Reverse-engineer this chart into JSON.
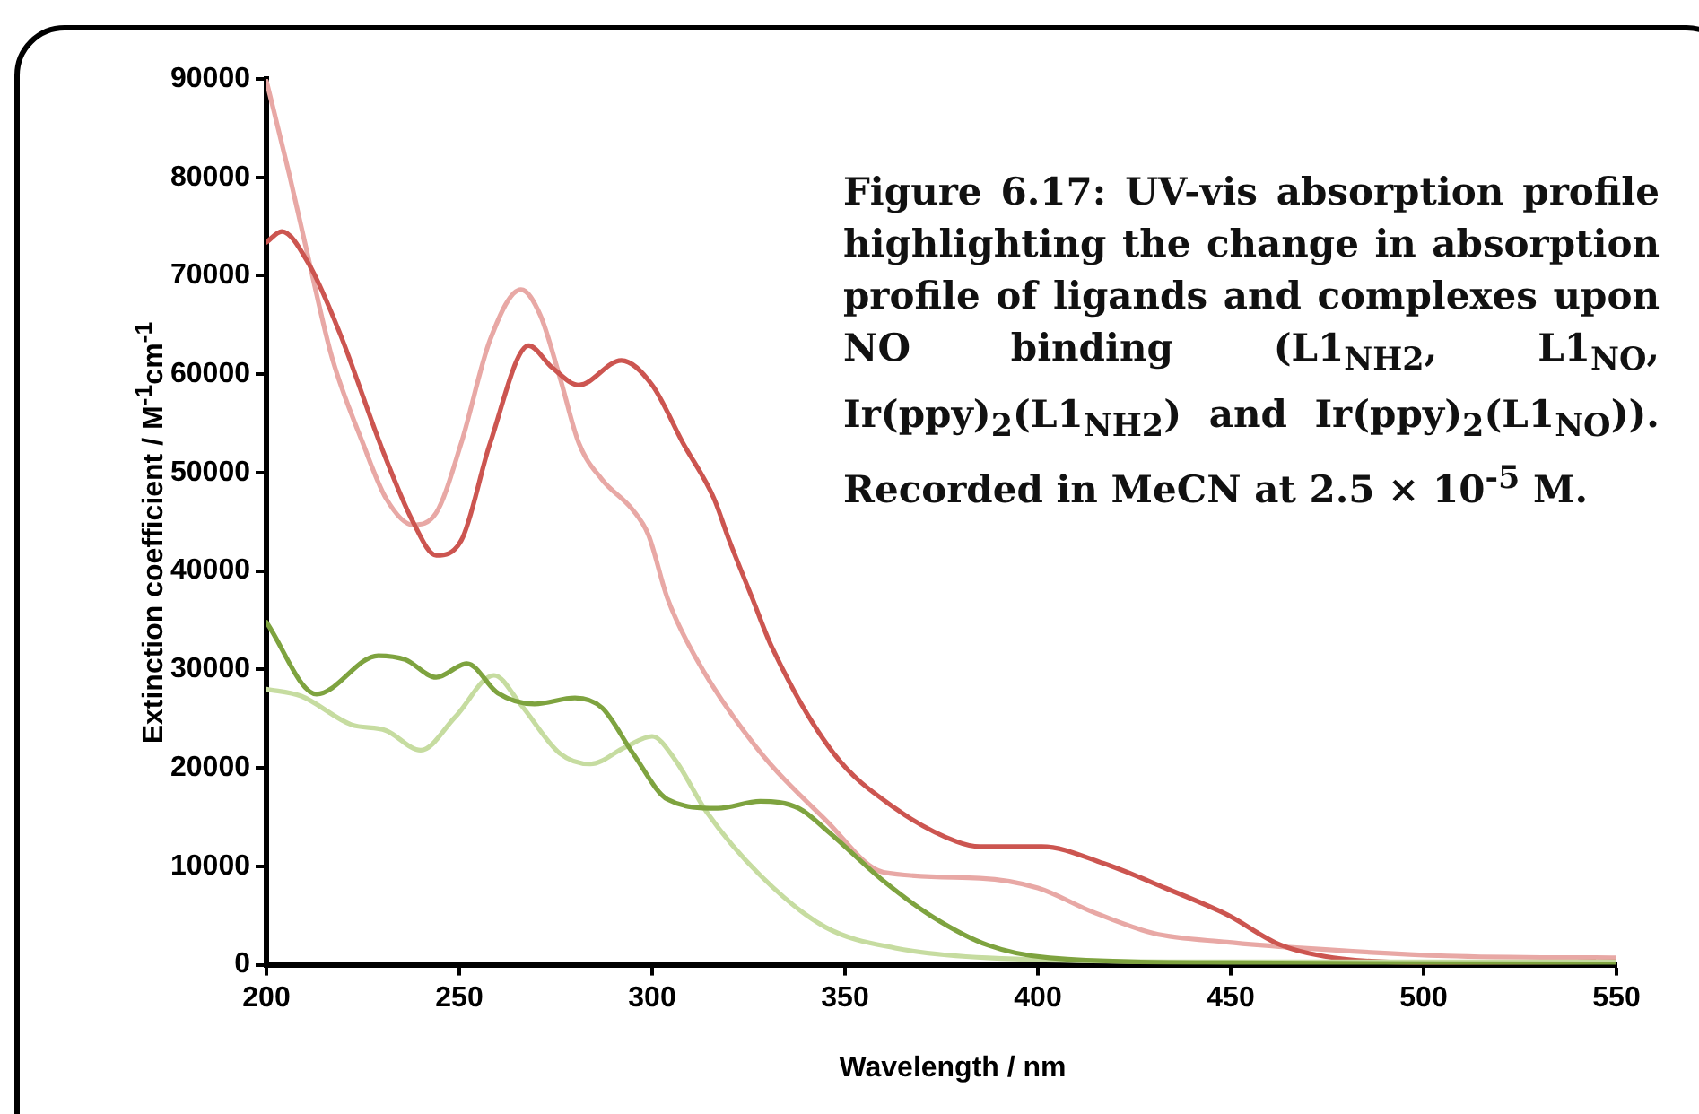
{
  "chart_data": {
    "type": "line",
    "xlabel": "Wavelength / nm",
    "ylabel": "Extinction coefficient / M$^{-1}$cm$^{-1}$",
    "annotations": [
      "Figure 6.17: UV-vis absorption profile highlighting the change in absorption profile of ligands and complexes upon NO binding (L1$_{NH2}$, L1$_{NO}$, Ir(ppy)$_{2}$(L1$_{NH2}$) and Ir(ppy)$_{2}$(L1$_{NO}$)). Recorded in MeCN at 2.5 × 10$^{-5}$ M."
    ],
    "xlim": [
      200,
      550
    ],
    "xticks": [
      200,
      250,
      300,
      350,
      400,
      450,
      500,
      550
    ],
    "ylim": [
      0,
      90000
    ],
    "yticks": [
      0,
      10000,
      20000,
      30000,
      40000,
      50000,
      60000,
      70000,
      80000,
      90000
    ],
    "grid": false,
    "legend": false,
    "marker": "none",
    "line_style": "solid",
    "series": [
      {
        "color": "#7ea33f",
        "x": [
          200,
          213,
          229,
          236,
          244,
          252,
          260,
          269.5,
          280,
          287,
          295,
          304,
          317,
          328,
          338,
          346,
          360,
          373,
          387,
          403,
          450,
          550
        ],
        "values": [
          34800,
          27500,
          31400,
          31000,
          29200,
          30600,
          27600,
          26500,
          27100,
          26100,
          21500,
          16800,
          15900,
          16600,
          15900,
          13400,
          8500,
          4800,
          2000,
          700,
          200,
          100
        ]
      },
      {
        "color": "#c6dca0",
        "x": [
          200,
          209,
          222,
          231,
          240,
          249,
          259,
          266,
          276,
          284,
          293,
          300,
          306,
          314,
          328,
          345,
          363,
          387,
          450,
          550
        ],
        "values": [
          28000,
          27300,
          24400,
          23800,
          21800,
          25200,
          29400,
          26400,
          21500,
          20400,
          22100,
          23200,
          20800,
          15600,
          9100,
          3800,
          1700,
          700,
          300,
          300
        ]
      },
      {
        "color": "#cc5550",
        "x": [
          200,
          204,
          211,
          219,
          230,
          238,
          244,
          250.5,
          258,
          268,
          274,
          281,
          292,
          300,
          308,
          316,
          320,
          326,
          331,
          347,
          363,
          379,
          385,
          401,
          417,
          433,
          449,
          463,
          479,
          506,
          550
        ],
        "values": [
          73400,
          74500,
          71200,
          64200,
          52400,
          45000,
          41600,
          43100,
          53000,
          62900,
          60700,
          58900,
          61400,
          58900,
          53000,
          47400,
          43100,
          37200,
          32300,
          21500,
          15900,
          12500,
          12000,
          12000,
          10300,
          7800,
          5100,
          2000,
          600,
          200,
          300
        ]
      },
      {
        "color": "#e8a8a5",
        "x": [
          200,
          206,
          211,
          217,
          225,
          231,
          238,
          244,
          250.5,
          258,
          266,
          271,
          276,
          281,
          287,
          295,
          299,
          304,
          311,
          327,
          345,
          360,
          385,
          400,
          414,
          430,
          449,
          468,
          506,
          550
        ],
        "values": [
          89800,
          80200,
          71600,
          61700,
          53000,
          47400,
          44700,
          45900,
          53000,
          63500,
          68600,
          66000,
          59800,
          53000,
          49300,
          46200,
          43700,
          37200,
          31400,
          22100,
          14700,
          9400,
          8800,
          7800,
          5400,
          3200,
          2300,
          1700,
          900,
          700
        ]
      }
    ]
  }
}
